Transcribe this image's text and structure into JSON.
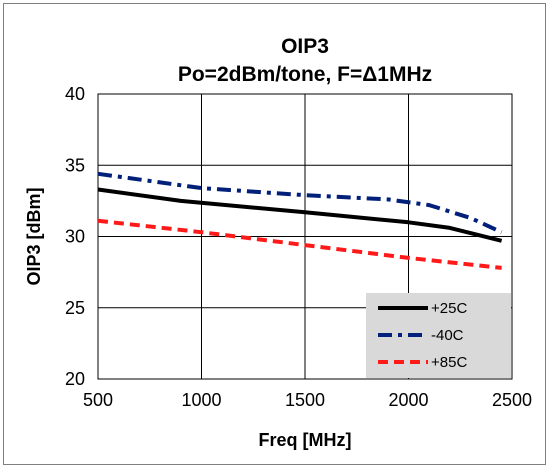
{
  "chart_data": {
    "type": "line",
    "title_line1": "OIP3",
    "title_line2": "Po=2dBm/tone,  F=Δ1MHz",
    "xlabel": "Freq [MHz]",
    "ylabel": "OIP3 [dBm]",
    "xlim": [
      500,
      2500
    ],
    "ylim": [
      20,
      40
    ],
    "xticks": [
      500,
      1000,
      1500,
      2000,
      2500
    ],
    "yticks": [
      20,
      25,
      30,
      35,
      40
    ],
    "grid": true,
    "legend_position": "bottom-right",
    "series": [
      {
        "name": "+25C",
        "color": "#000000",
        "dash": "solid",
        "x": [
          500,
          900,
          1500,
          2000,
          2200,
          2450
        ],
        "y": [
          33.3,
          32.5,
          31.7,
          31.0,
          30.6,
          29.7
        ]
      },
      {
        "name": "-40C",
        "color": "#00207a",
        "dash": "dashdot",
        "x": [
          500,
          1000,
          1500,
          1900,
          2100,
          2300,
          2450
        ],
        "y": [
          34.4,
          33.4,
          32.9,
          32.6,
          32.2,
          31.3,
          30.3
        ]
      },
      {
        "name": "+85C",
        "color": "#ff1a1a",
        "dash": "dashed",
        "x": [
          500,
          1000,
          1500,
          2000,
          2450
        ],
        "y": [
          31.1,
          30.3,
          29.4,
          28.5,
          27.8
        ]
      }
    ]
  }
}
